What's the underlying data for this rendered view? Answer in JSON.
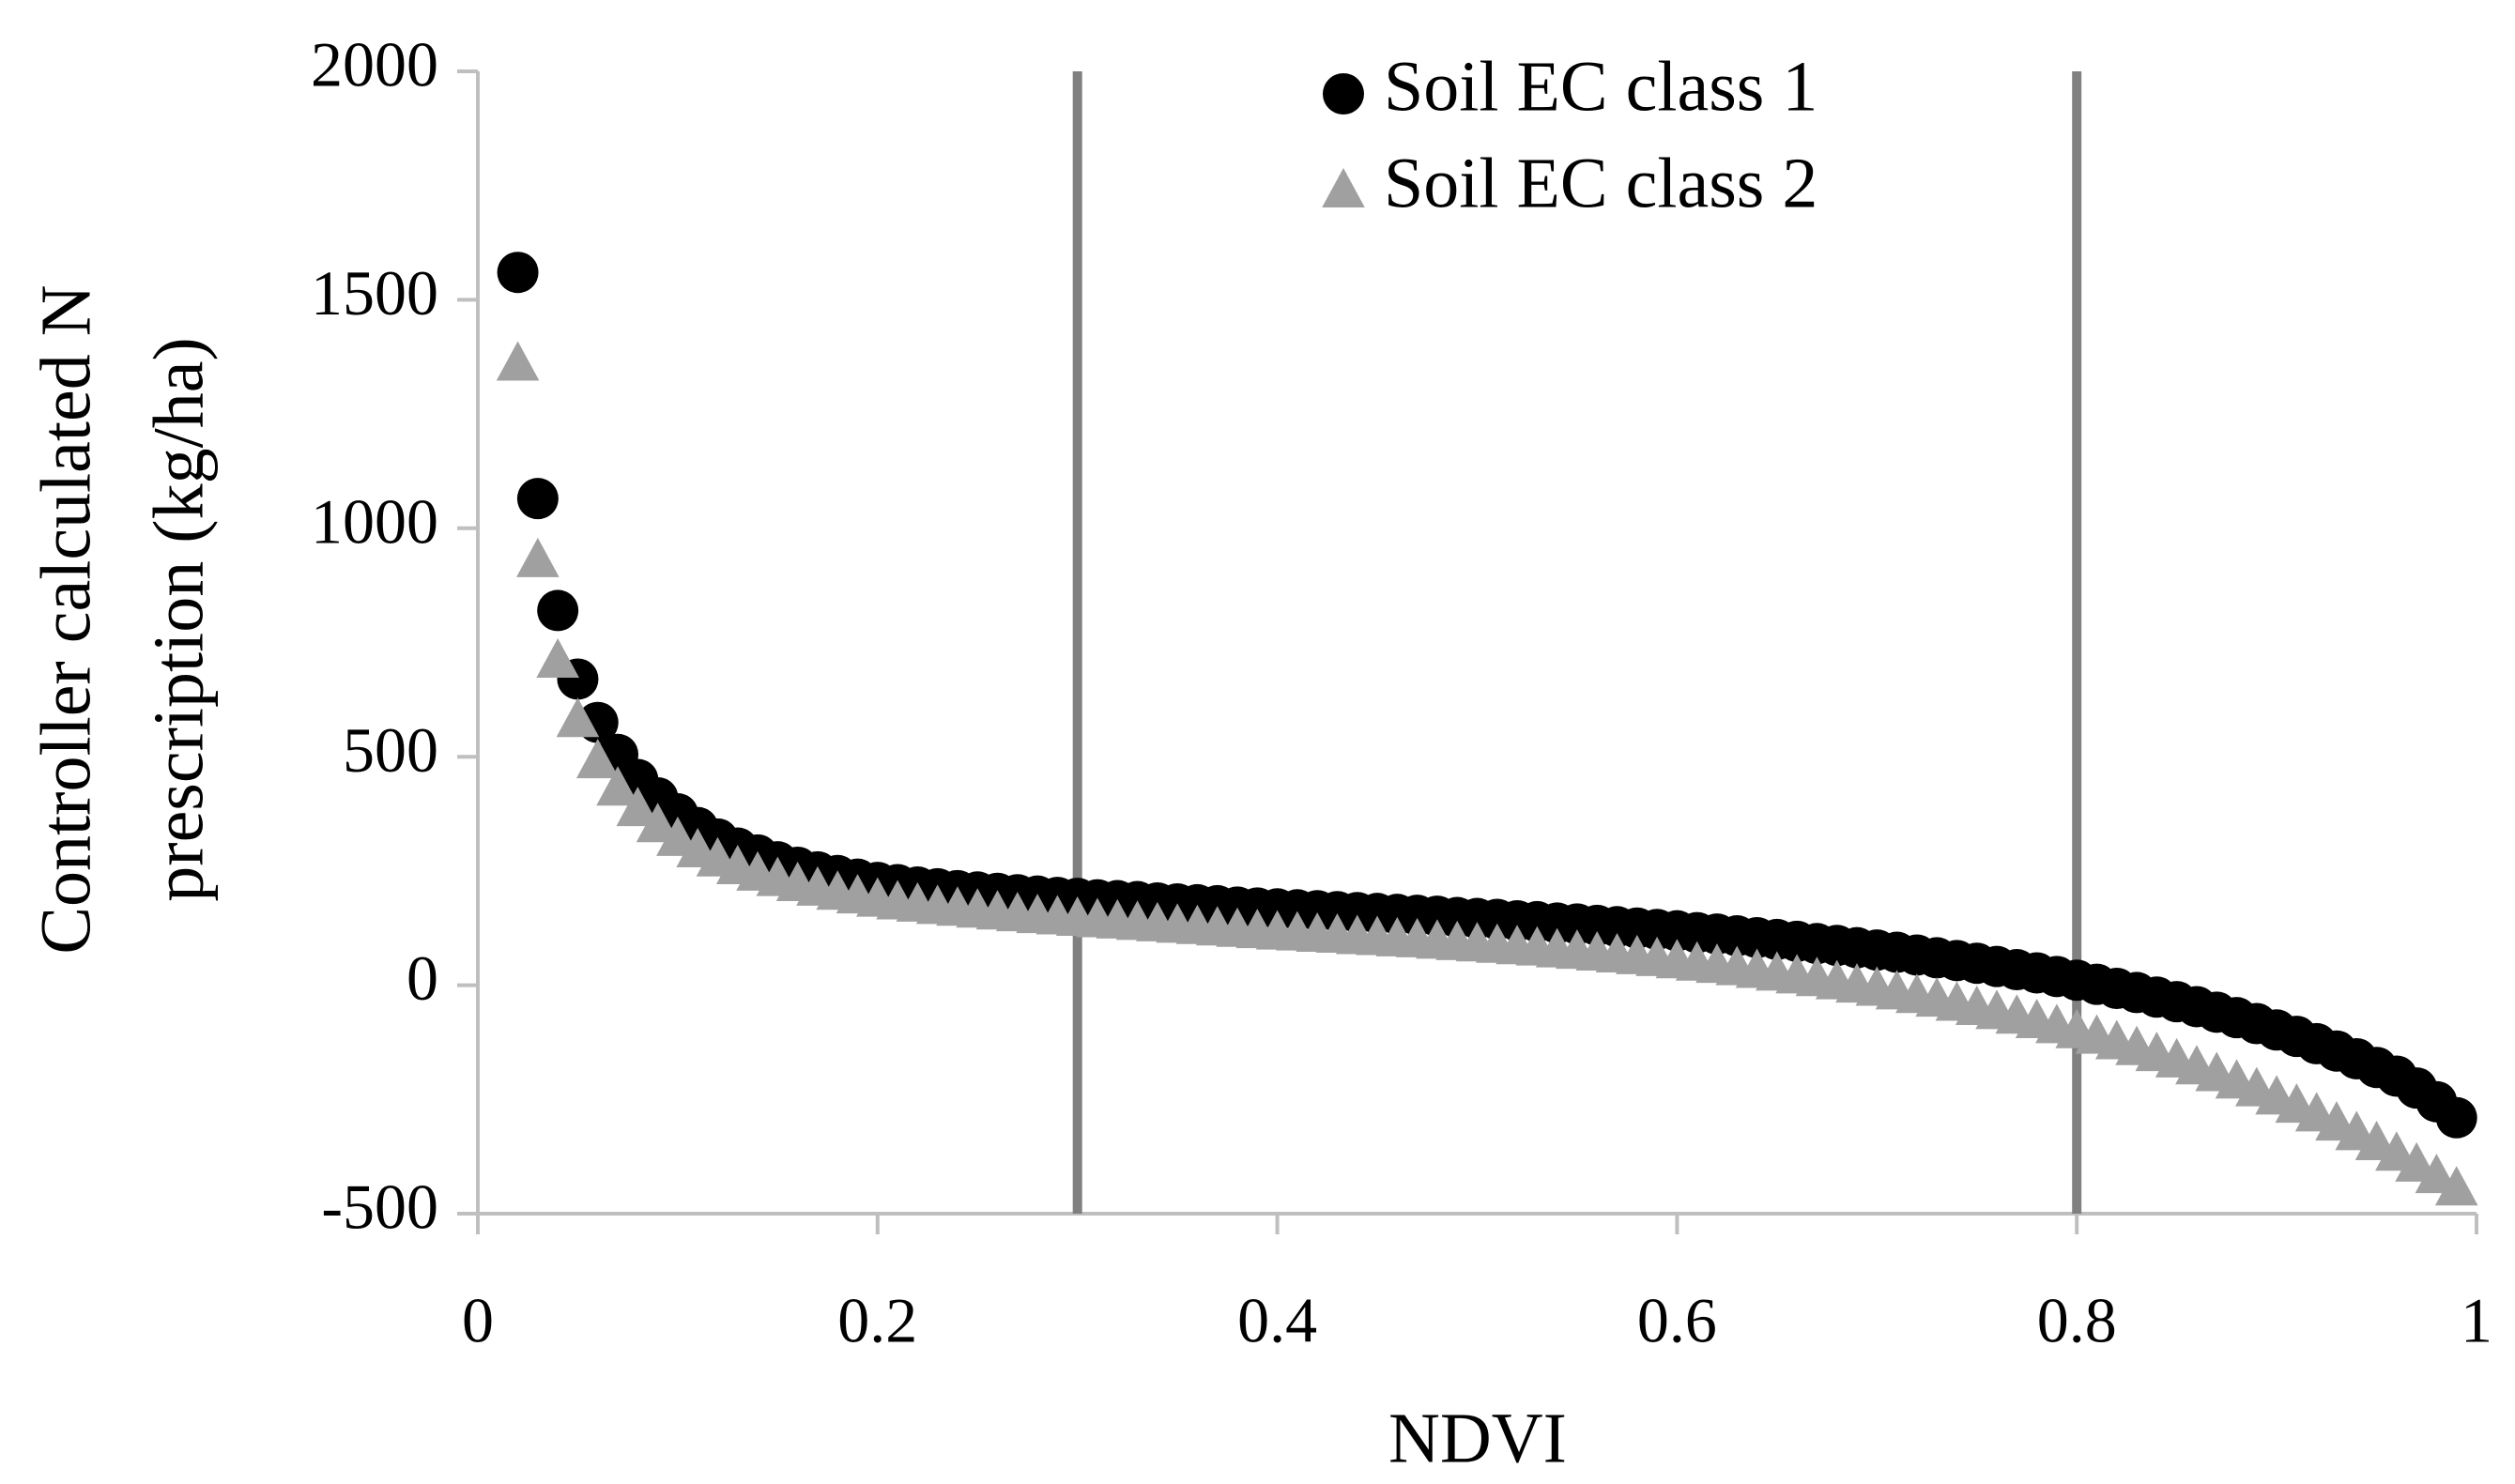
{
  "chart_data": {
    "type": "scatter",
    "xlabel": "NDVI",
    "ylabel": [
      "Controller calculated N",
      "prescription (kg/ha)"
    ],
    "xlim": [
      0,
      1
    ],
    "xticks": [
      0,
      0.2,
      0.4,
      0.6,
      0.8,
      1
    ],
    "ylim": [
      -500,
      2000
    ],
    "yticks": [
      -500,
      0,
      500,
      1000,
      1500,
      2000
    ],
    "vlines": [
      0.3,
      0.8
    ],
    "vline_color": "#808080",
    "legend": "top",
    "x": [
      0.02,
      0.03,
      0.04,
      0.05,
      0.06,
      0.07,
      0.08,
      0.09,
      0.1,
      0.11,
      0.12,
      0.13,
      0.14,
      0.15,
      0.16,
      0.17,
      0.18,
      0.19,
      0.2,
      0.21,
      0.22,
      0.23,
      0.24,
      0.25,
      0.26,
      0.27,
      0.28,
      0.29,
      0.3,
      0.31,
      0.32,
      0.33,
      0.34,
      0.35,
      0.36,
      0.37,
      0.38,
      0.39,
      0.4,
      0.41,
      0.42,
      0.43,
      0.44,
      0.45,
      0.46,
      0.47,
      0.48,
      0.49,
      0.5,
      0.51,
      0.52,
      0.53,
      0.54,
      0.55,
      0.56,
      0.57,
      0.58,
      0.59,
      0.6,
      0.61,
      0.62,
      0.63,
      0.64,
      0.65,
      0.66,
      0.67,
      0.68,
      0.69,
      0.7,
      0.71,
      0.72,
      0.73,
      0.74,
      0.75,
      0.76,
      0.77,
      0.78,
      0.79,
      0.8,
      0.81,
      0.82,
      0.83,
      0.84,
      0.85,
      0.86,
      0.87,
      0.88,
      0.89,
      0.9,
      0.91,
      0.92,
      0.93,
      0.94,
      0.95,
      0.96,
      0.97,
      0.98,
      0.99
    ],
    "series": [
      {
        "name": "Soil EC class 1",
        "color": "#000000",
        "marker": "circle",
        "values": [
          1560,
          1065,
          820,
          670,
          575,
          505,
          450,
          410,
          375,
          345,
          320,
          300,
          285,
          270,
          258,
          248,
          240,
          232,
          225,
          220,
          215,
          211,
          207,
          204,
          201,
          198,
          195,
          192,
          190,
          187,
          185,
          183,
          180,
          178,
          176,
          174,
          171,
          169,
          167,
          165,
          163,
          161,
          159,
          157,
          155,
          153,
          151,
          148,
          146,
          144,
          141,
          139,
          136,
          134,
          131,
          128,
          125,
          122,
          119,
          115,
          112,
          108,
          104,
          100,
          96,
          91,
          87,
          82,
          77,
          72,
          66,
          60,
          54,
          48,
          41,
          34,
          27,
          19,
          11,
          2,
          -7,
          -16,
          -26,
          -36,
          -47,
          -59,
          -71,
          -84,
          -98,
          -112,
          -128,
          -144,
          -161,
          -180,
          -199,
          -225,
          -255,
          -290
        ]
      },
      {
        "name": "Soil EC class 2",
        "color": "#a0a0a0",
        "marker": "triangle",
        "values": [
          1360,
          930,
          710,
          580,
          490,
          430,
          385,
          350,
          320,
          295,
          275,
          258,
          244,
          232,
          221,
          211,
          202,
          194,
          187,
          181,
          176,
          171,
          167,
          163,
          159,
          155,
          151,
          148,
          145,
          142,
          139,
          136,
          133,
          130,
          127,
          124,
          121,
          118,
          115,
          113,
          110,
          108,
          105,
          103,
          100,
          98,
          95,
          92,
          89,
          86,
          83,
          80,
          76,
          73,
          69,
          65,
          61,
          57,
          52,
          47,
          42,
          37,
          31,
          25,
          19,
          13,
          6,
          -1,
          -8,
          -16,
          -24,
          -32,
          -41,
          -50,
          -59,
          -69,
          -79,
          -90,
          -101,
          -113,
          -125,
          -138,
          -151,
          -165,
          -180,
          -195,
          -211,
          -228,
          -246,
          -264,
          -283,
          -303,
          -324,
          -346,
          -369,
          -393,
          -418,
          -445
        ]
      }
    ]
  }
}
